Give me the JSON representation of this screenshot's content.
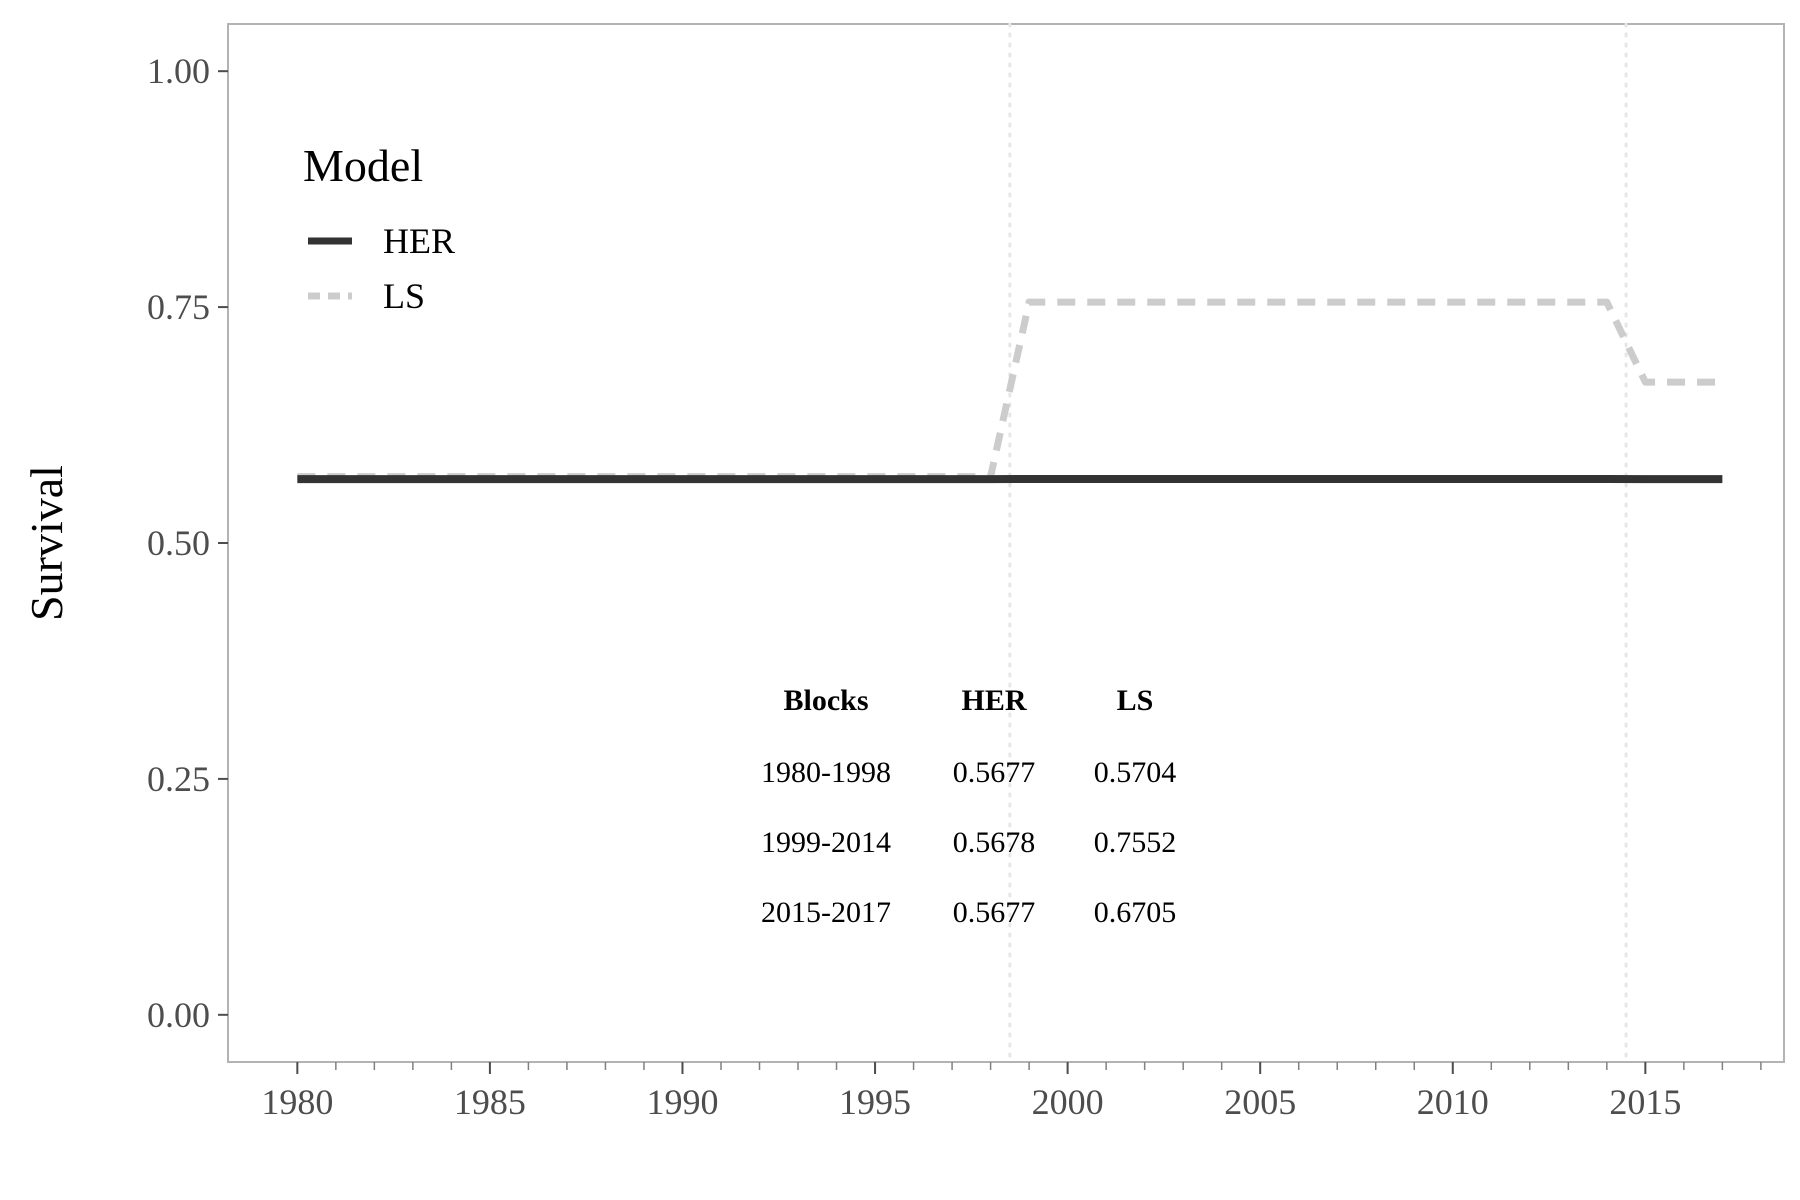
{
  "chart_data": {
    "type": "line",
    "title": "",
    "xlabel": "",
    "ylabel": "Survival",
    "xlim": [
      1978.2,
      2018.6
    ],
    "ylim": [
      -0.05,
      1.05
    ],
    "x_ticks": [
      1980,
      1985,
      1990,
      1995,
      2000,
      2005,
      2010,
      2015
    ],
    "x_tick_labels": [
      "1980",
      "1985",
      "1990",
      "1995",
      "2000",
      "2005",
      "2010",
      "2015"
    ],
    "y_ticks": [
      0,
      0.25,
      0.5,
      0.75,
      1.0
    ],
    "y_tick_labels": [
      "0.00",
      "0.25",
      "0.50",
      "0.75",
      "1.00"
    ],
    "vlines": [
      1998.5,
      2014.5
    ],
    "legend": {
      "title": "Model",
      "position": "top-left"
    },
    "series": [
      {
        "name": "HER",
        "style": "solid",
        "color": "#333333",
        "x": [
          1980,
          1998,
          1999,
          2014,
          2015,
          2017
        ],
        "values": [
          0.5677,
          0.5677,
          0.5678,
          0.5678,
          0.5677,
          0.5677
        ]
      },
      {
        "name": "LS",
        "style": "dashed",
        "color": "#cccccc",
        "x": [
          1980,
          1998,
          1999,
          2014,
          2015,
          2017
        ],
        "values": [
          0.5704,
          0.5704,
          0.7552,
          0.7552,
          0.6705,
          0.6705
        ]
      }
    ],
    "table": {
      "headers": [
        "Blocks",
        "HER",
        "LS"
      ],
      "rows": [
        [
          "1980-1998",
          "0.5677",
          "0.5704"
        ],
        [
          "1999-2014",
          "0.5678",
          "0.7552"
        ],
        [
          "2015-2017",
          "0.5677",
          "0.6705"
        ]
      ]
    }
  }
}
